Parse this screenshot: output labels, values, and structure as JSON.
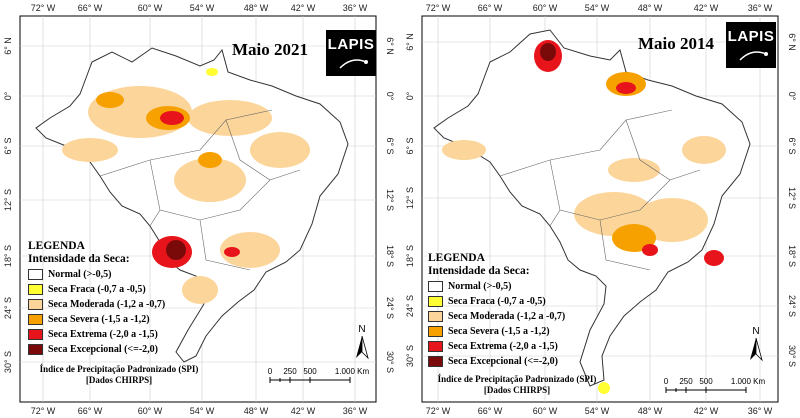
{
  "maps": [
    {
      "title": "Maio 2021",
      "logo": "LAPIS",
      "legend": {
        "title": "LEGENDA",
        "subtitle": "Intensidade da Seca:",
        "items": [
          {
            "label": "Normal (>-0,5)",
            "color": "#ffffff"
          },
          {
            "label": "Seca Fraca (-0,7 a -0,5)",
            "color": "#ffff33"
          },
          {
            "label": "Seca Moderada (-1,2 a -0,7)",
            "color": "#fcd59a"
          },
          {
            "label": "Seca Severa (-1,5 a -1,2)",
            "color": "#f7a100"
          },
          {
            "label": "Seca Extrema (-2,0 a -1,5)",
            "color": "#e8141c"
          },
          {
            "label": "Seca Excepcional (<=-2,0)",
            "color": "#7a0a0a"
          }
        ]
      },
      "source_line1": "Índice de Precipitação Padronizado (SPI)",
      "source_line2": "[Dados CHIRPS]",
      "scale_labels": [
        "0",
        "250",
        "500",
        "1.000 Km"
      ],
      "north": "N",
      "lon_ticks": [
        "72° W",
        "66° W",
        "60° W",
        "54° W",
        "48° W",
        "42° W",
        "36° W"
      ],
      "lat_ticks": [
        "6° N",
        "0°",
        "6° S",
        "12° S",
        "18° S",
        "24° S",
        "30° S"
      ]
    },
    {
      "title": "Maio 2014",
      "logo": "LAPIS",
      "legend": {
        "title": "LEGENDA",
        "subtitle": "Intensidade da Seca:",
        "items": [
          {
            "label": "Normal (>-0,5)",
            "color": "#ffffff"
          },
          {
            "label": "Seca Fraca (-0,7 a -0,5)",
            "color": "#ffff33"
          },
          {
            "label": "Seca Moderada (-1,2 a -0,7)",
            "color": "#fcd59a"
          },
          {
            "label": "Seca Severa (-1,5 a -1,2)",
            "color": "#f7a100"
          },
          {
            "label": "Seca Extrema (-2,0 a -1,5)",
            "color": "#e8141c"
          },
          {
            "label": "Seca Excepcional (<=-2,0)",
            "color": "#7a0a0a"
          }
        ]
      },
      "source_line1": "Índice de Precipitação Padronizado (SPI)",
      "source_line2": "[Dados CHIRPS]",
      "scale_labels": [
        "0",
        "250",
        "500",
        "1.000 Km"
      ],
      "north": "N",
      "lon_ticks": [
        "72° W",
        "66° W",
        "60° W",
        "54° W",
        "48° W",
        "42° W",
        "36° W"
      ],
      "lat_ticks": [
        "6° N",
        "0°",
        "6° S",
        "12° S",
        "18° S",
        "24° S",
        "30° S"
      ]
    }
  ]
}
